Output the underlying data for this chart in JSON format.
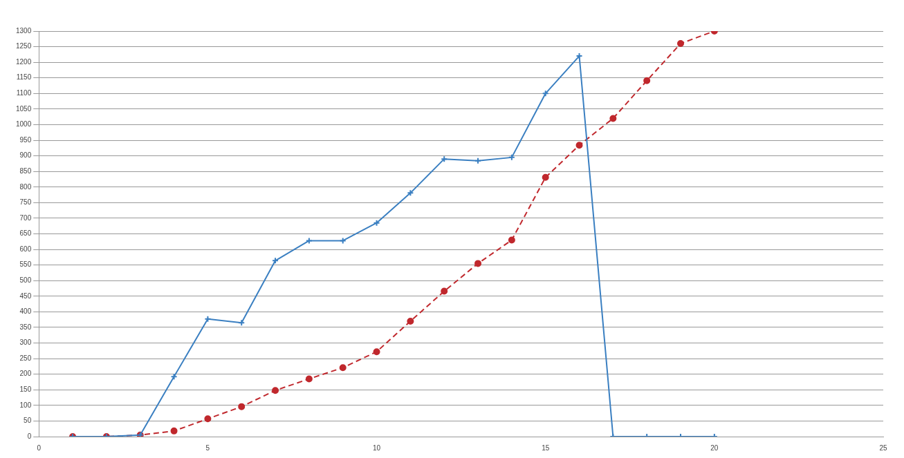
{
  "chart_data": {
    "type": "line",
    "x": [
      1,
      2,
      3,
      4,
      5,
      6,
      7,
      8,
      9,
      10,
      11,
      12,
      13,
      14,
      15,
      16,
      17,
      18,
      19,
      20
    ],
    "series": [
      {
        "color": "#3a7fc1",
        "marker": "cross",
        "line_style": "solid",
        "values": [
          0,
          0,
          5,
          192,
          377,
          365,
          564,
          628,
          628,
          685,
          781,
          890,
          884,
          895,
          1100,
          1220,
          0,
          0,
          0,
          0
        ]
      },
      {
        "color": "#c0282d",
        "marker": "circle",
        "line_style": "dashed",
        "values": [
          0,
          0,
          5,
          18,
          57,
          96,
          148,
          185,
          221,
          272,
          370,
          466,
          555,
          630,
          831,
          934,
          1020,
          1141,
          1260,
          1300
        ]
      }
    ],
    "xlim": [
      0,
      25
    ],
    "xticks": [
      0,
      5,
      10,
      15,
      20,
      25
    ],
    "ylim": [
      0,
      1300
    ],
    "yticks": [
      0,
      50,
      100,
      150,
      200,
      250,
      300,
      350,
      400,
      450,
      500,
      550,
      600,
      650,
      700,
      750,
      800,
      850,
      900,
      950,
      1000,
      1050,
      1100,
      1150,
      1200,
      1250,
      1300
    ],
    "grid": "y",
    "legend": false
  }
}
